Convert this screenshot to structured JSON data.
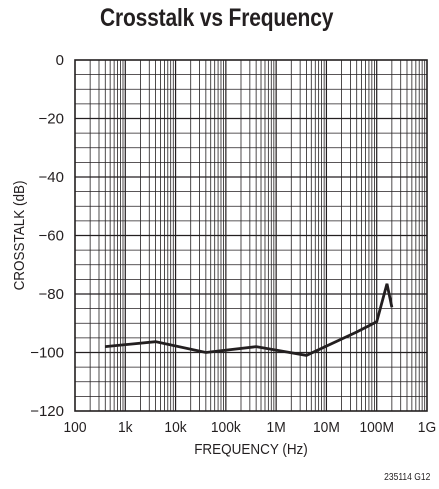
{
  "chart_data": {
    "type": "line",
    "title": "Crosstalk vs Frequency",
    "xlabel": "FREQUENCY (Hz)",
    "ylabel": "CROSSTALK (dB)",
    "x_scale": "log",
    "xlim": [
      100,
      1000000000
    ],
    "ylim": [
      -120,
      0
    ],
    "x_ticks": [
      100,
      1000,
      10000,
      100000,
      1000000,
      10000000,
      100000000,
      1000000000
    ],
    "x_tick_labels": [
      "100",
      "1k",
      "10k",
      "100k",
      "1M",
      "10M",
      "100M",
      "1G"
    ],
    "y_ticks": [
      0,
      -20,
      -40,
      -60,
      -80,
      -100,
      -120
    ],
    "y_tick_labels": [
      "0",
      "−20",
      "−40",
      "−60",
      "−80",
      "−100",
      "−120"
    ],
    "grid": true,
    "line_color": "#231f20",
    "series": [
      {
        "x": [
          400,
          4000,
          40000,
          400000,
          4000000,
          40000000,
          100000000,
          160000000,
          200000000
        ],
        "y": [
          -98,
          -96.3,
          -100,
          -98,
          -101,
          -93,
          -89.5,
          -76.5,
          -84.5
        ]
      }
    ]
  },
  "footnote": "235114 G12"
}
